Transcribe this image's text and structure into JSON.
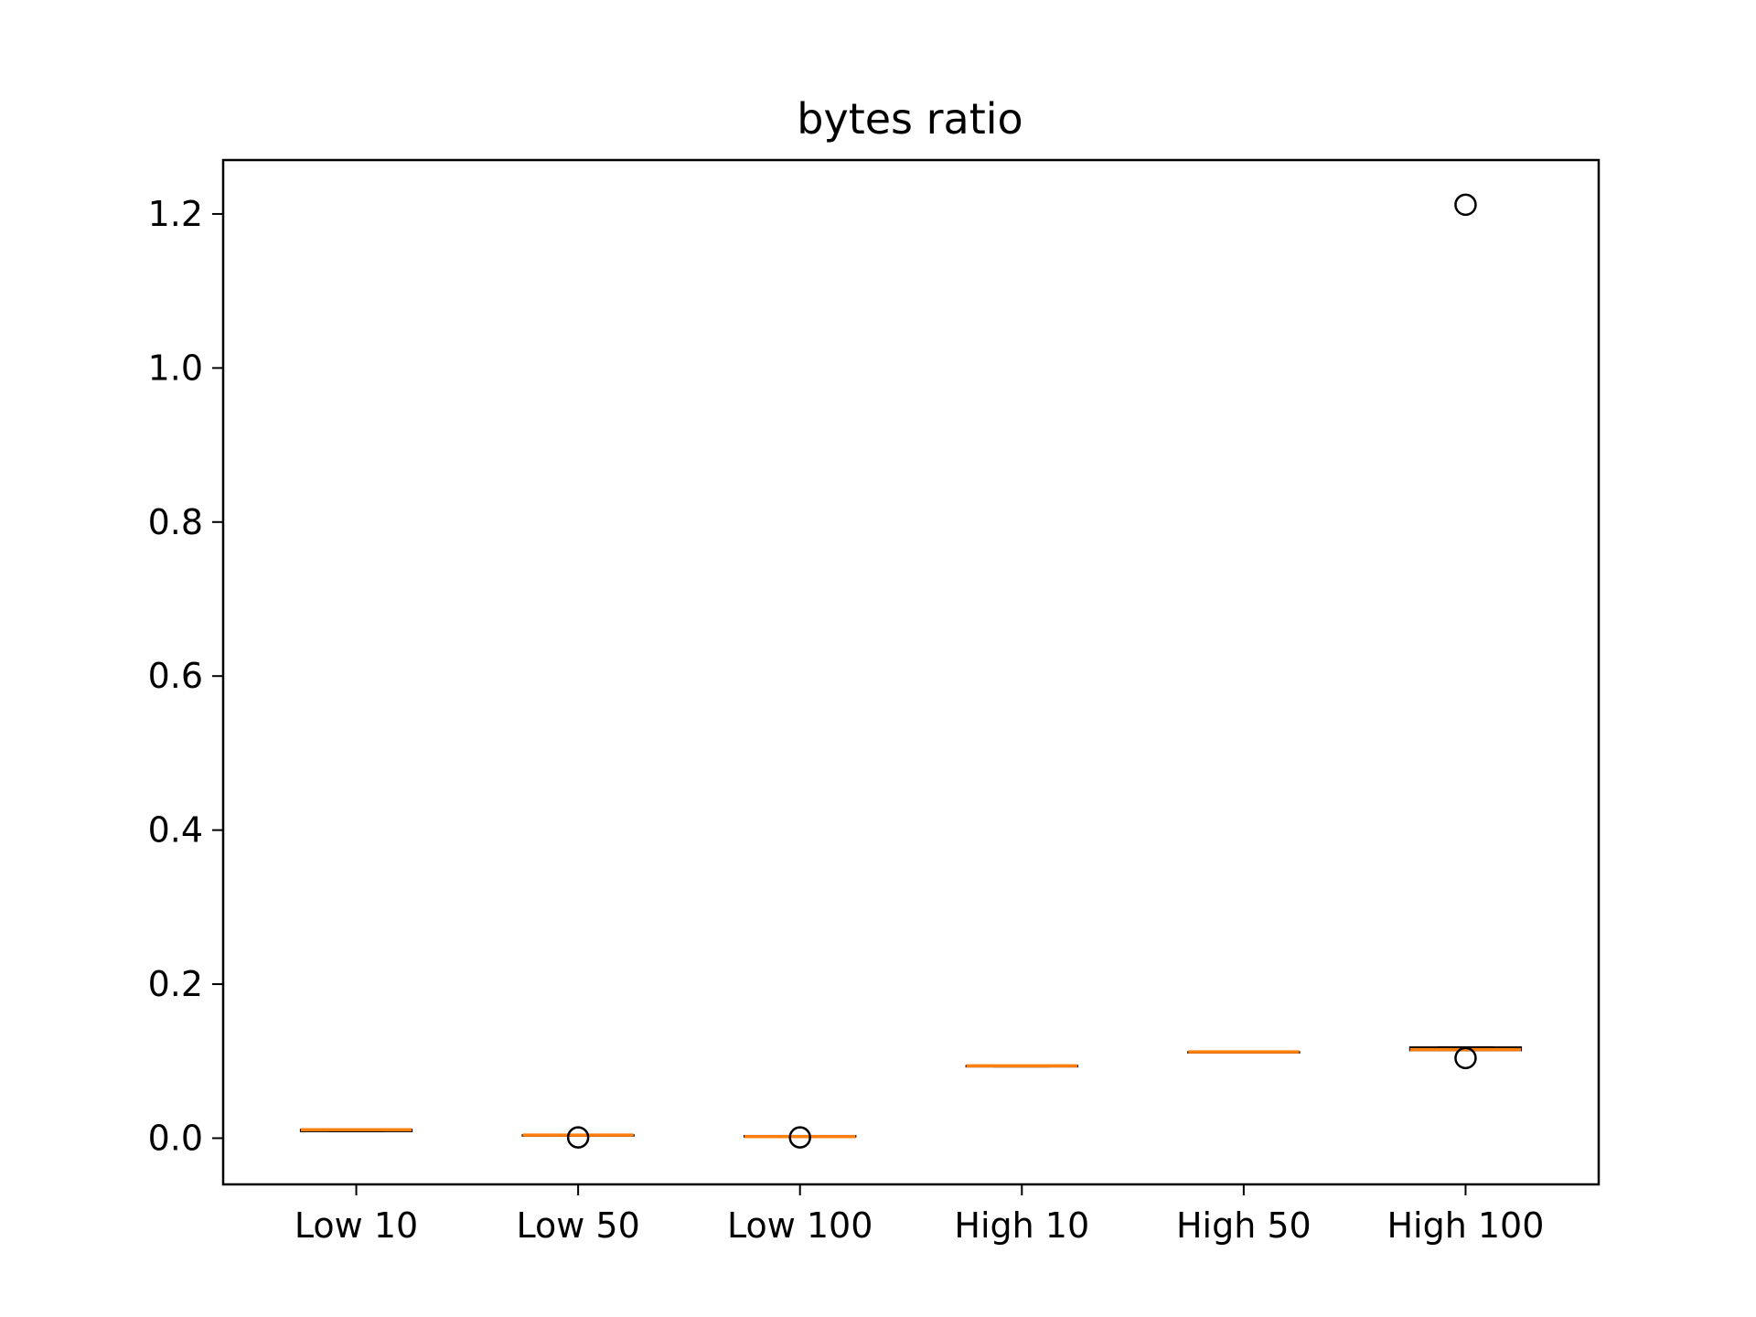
{
  "chart_data": {
    "type": "box",
    "title": "bytes ratio",
    "xlabel": "",
    "ylabel": "",
    "categories": [
      "Low 10",
      "Low 50",
      "Low 100",
      "High 10",
      "High 50",
      "High 100"
    ],
    "boxes": [
      {
        "category": "Low 10",
        "whisker_low": 0.009,
        "q1": 0.009,
        "median": 0.011,
        "q3": 0.011,
        "whisker_high": 0.011,
        "outliers": []
      },
      {
        "category": "Low 50",
        "whisker_low": 0.003,
        "q1": 0.003,
        "median": 0.004,
        "q3": 0.004,
        "whisker_high": 0.004,
        "outliers": [
          0.001
        ]
      },
      {
        "category": "Low 100",
        "whisker_low": 0.002,
        "q1": 0.002,
        "median": 0.002,
        "q3": 0.003,
        "whisker_high": 0.003,
        "outliers": [
          0.001
        ]
      },
      {
        "category": "High 10",
        "whisker_low": 0.093,
        "q1": 0.093,
        "median": 0.094,
        "q3": 0.094,
        "whisker_high": 0.094,
        "outliers": []
      },
      {
        "category": "High 50",
        "whisker_low": 0.111,
        "q1": 0.111,
        "median": 0.112,
        "q3": 0.112,
        "whisker_high": 0.112,
        "outliers": []
      },
      {
        "category": "High 100",
        "whisker_low": 0.114,
        "q1": 0.114,
        "median": 0.115,
        "q3": 0.118,
        "whisker_high": 0.118,
        "outliers": [
          1.212,
          0.104
        ]
      }
    ],
    "yticks": [
      "0.0",
      "0.2",
      "0.4",
      "0.6",
      "0.8",
      "1.0",
      "1.2"
    ],
    "ylim": [
      -0.06,
      1.27
    ],
    "grid": false,
    "colors": {
      "box": "#000000",
      "median": "#ff7f0e",
      "outlier": "#000000"
    }
  }
}
